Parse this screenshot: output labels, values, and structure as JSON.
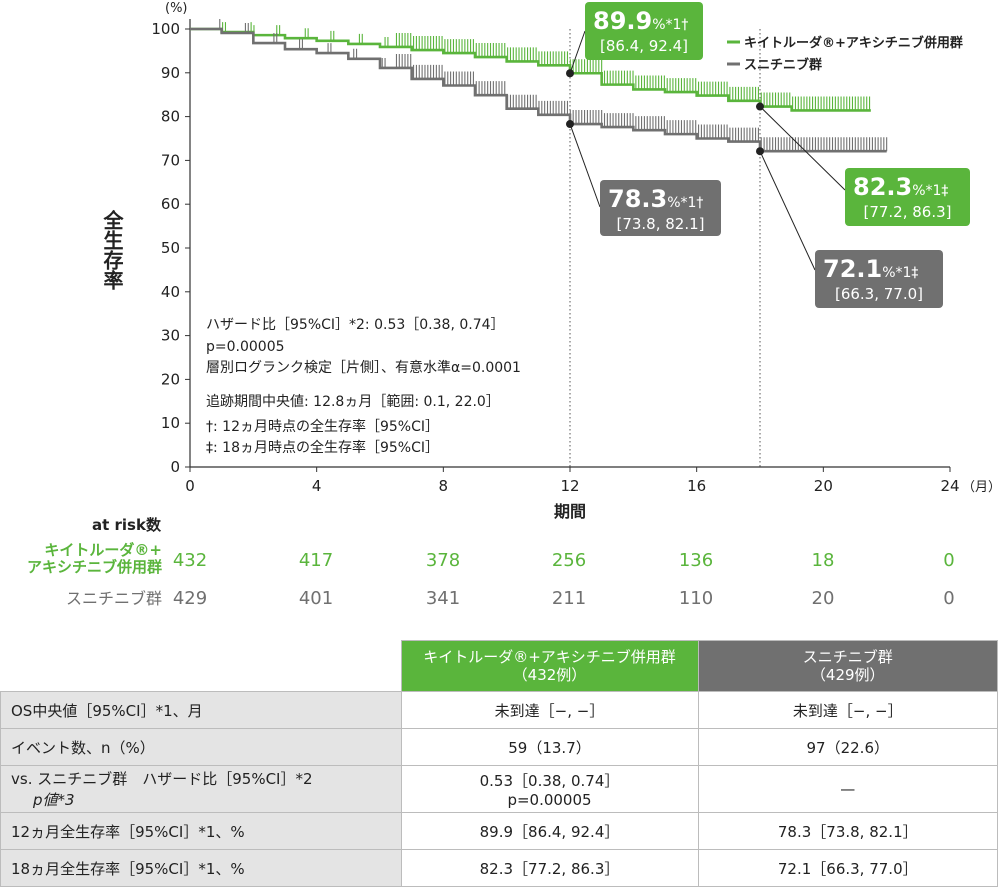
{
  "chart_data": {
    "type": "line",
    "title": "",
    "xlabel": "期間",
    "x_unit": "（月）",
    "ylabel": "全生存率",
    "y_unit": "(%)",
    "xlim": [
      0,
      24
    ],
    "ylim": [
      0,
      100
    ],
    "x_ticks": [
      0,
      4,
      8,
      12,
      16,
      20,
      24
    ],
    "y_ticks": [
      0,
      10,
      20,
      30,
      40,
      50,
      60,
      70,
      80,
      90,
      100
    ],
    "legend_position": "top-right",
    "series": [
      {
        "name": "キイトルーダ®+アキシチニブ併用群",
        "color": "#5ab53c",
        "x": [
          0,
          1,
          2,
          3,
          4,
          5,
          6,
          7,
          8,
          9,
          10,
          11,
          12,
          13,
          14,
          15,
          16,
          17,
          18,
          19,
          20,
          21,
          21.5
        ],
        "y": [
          100,
          99.3,
          98.6,
          97.9,
          97.3,
          96.6,
          95.9,
          95.2,
          94.5,
          93.6,
          92.6,
          91.7,
          89.9,
          87.3,
          86.2,
          85.6,
          84.8,
          83.6,
          82.3,
          81.4,
          81.4,
          81.4,
          81.4
        ]
      },
      {
        "name": "スニチニブ群",
        "color": "#707070",
        "x": [
          0,
          1,
          2,
          3,
          4,
          5,
          6,
          7,
          8,
          9,
          10,
          11,
          12,
          13,
          14,
          15,
          16,
          17,
          18,
          19,
          20,
          21,
          22
        ],
        "y": [
          100,
          99.1,
          96.8,
          95.4,
          94.5,
          93.2,
          91.1,
          88.6,
          87.1,
          84.9,
          81.8,
          80.4,
          78.3,
          77.6,
          76.9,
          76.0,
          75.0,
          74.3,
          72.1,
          72.1,
          72.1,
          72.1,
          72.1
        ]
      }
    ],
    "annotations": [
      {
        "series": 0,
        "x": 12,
        "y": 89.9,
        "value": "89.9",
        "unit": "%",
        "mark": "*1†",
        "ci": "[86.4, 92.4]"
      },
      {
        "series": 1,
        "x": 12,
        "y": 78.3,
        "value": "78.3",
        "unit": "%",
        "mark": "*1†",
        "ci": "[73.8, 82.1]"
      },
      {
        "series": 0,
        "x": 18,
        "y": 82.3,
        "value": "82.3",
        "unit": "%",
        "mark": "*1‡",
        "ci": "[77.2, 86.3]"
      },
      {
        "series": 1,
        "x": 18,
        "y": 72.1,
        "value": "72.1",
        "unit": "%",
        "mark": "*1‡",
        "ci": "[66.3, 77.0]"
      }
    ],
    "reference_lines_x": [
      12,
      18
    ],
    "stats_text": {
      "hr": "ハザード比［95%CI］*2: 0.53［0.38, 0.74］",
      "p": "p=0.00005",
      "test": "層別ログランク検定［片側］、有意水準α=0.0001",
      "followup": "追跡期間中央値: 12.8ヵ月［範囲: 0.1, 22.0］",
      "dagger": "†: 12ヵ月時点の全生存率［95%CI］",
      "ddagger": "‡: 18ヵ月時点の全生存率［95%CI］"
    }
  },
  "at_risk": {
    "title": "at risk数",
    "times": [
      0,
      4,
      8,
      12,
      16,
      20,
      24
    ],
    "rows": [
      {
        "label_line1": "キイトルーダ®+",
        "label_line2": "アキシチニブ併用群",
        "values": [
          "432",
          "417",
          "378",
          "256",
          "136",
          "18",
          "0"
        ]
      },
      {
        "label_line1": "スニチニブ群",
        "label_line2": "",
        "values": [
          "429",
          "401",
          "341",
          "211",
          "110",
          "20",
          "0"
        ]
      }
    ]
  },
  "table": {
    "header_green_line1": "キイトルーダ®+アキシチニブ併用群",
    "header_green_line2": "（432例）",
    "header_gray_line1": "スニチニブ群",
    "header_gray_line2": "（429例）",
    "rows": [
      {
        "label": "OS中央値［95%CI］*1、月",
        "green": "未到達［−, −］",
        "gray": "未到達［−, −］"
      },
      {
        "label": "イベント数、n（%）",
        "green": "59（13.7）",
        "gray": "97（22.6）"
      },
      {
        "label": "vs. スニチニブ群　ハザード比［95%CI］*2",
        "label2": "p値*3",
        "green": "0.53［0.38, 0.74］",
        "green2": "p=0.00005",
        "gray": "—"
      },
      {
        "label": "12ヵ月全生存率［95%CI］*1、%",
        "green": "89.9［86.4, 92.4］",
        "gray": "78.3［73.8, 82.1］"
      },
      {
        "label": "18ヵ月全生存率［95%CI］*1、%",
        "green": "82.3［77.2, 86.3］",
        "gray": "72.1［66.3, 77.0］"
      }
    ]
  }
}
